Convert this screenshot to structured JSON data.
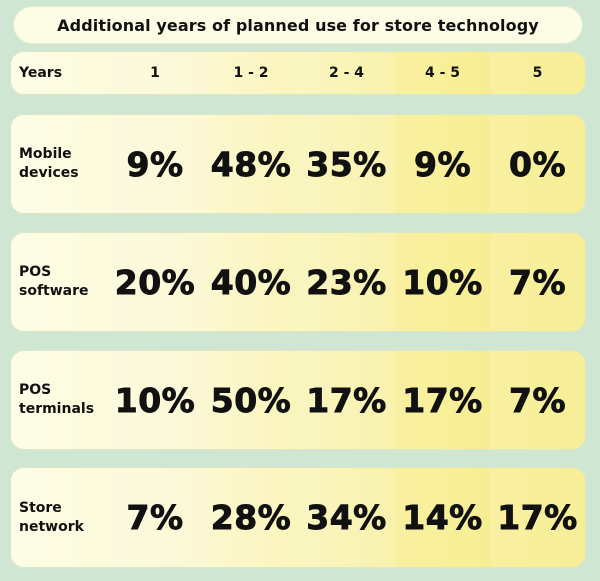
{
  "title": "Additional years of planned use for store technology",
  "chart_data": {
    "type": "table",
    "title": "Additional years of planned use for store technology",
    "row_header": "Years",
    "columns": [
      "1",
      "1 - 2",
      "2 - 4",
      "4 - 5",
      "5"
    ],
    "rows": [
      {
        "label": "Mobile\ndevices",
        "values": [
          "9%",
          "48%",
          "35%",
          "9%",
          "0%"
        ]
      },
      {
        "label": "POS\nsoftware",
        "values": [
          "20%",
          "40%",
          "23%",
          "10%",
          "7%"
        ]
      },
      {
        "label": "POS\nterminals",
        "values": [
          "10%",
          "50%",
          "17%",
          "17%",
          "7%"
        ]
      },
      {
        "label": "Store\nnetwork",
        "values": [
          "7%",
          "28%",
          "34%",
          "14%",
          "17%"
        ]
      }
    ]
  },
  "colors": {
    "background": "#cfe6d2",
    "row_fill_left": "#fdfde6",
    "row_fill_right": "#f6ec88",
    "text": "#111111"
  }
}
